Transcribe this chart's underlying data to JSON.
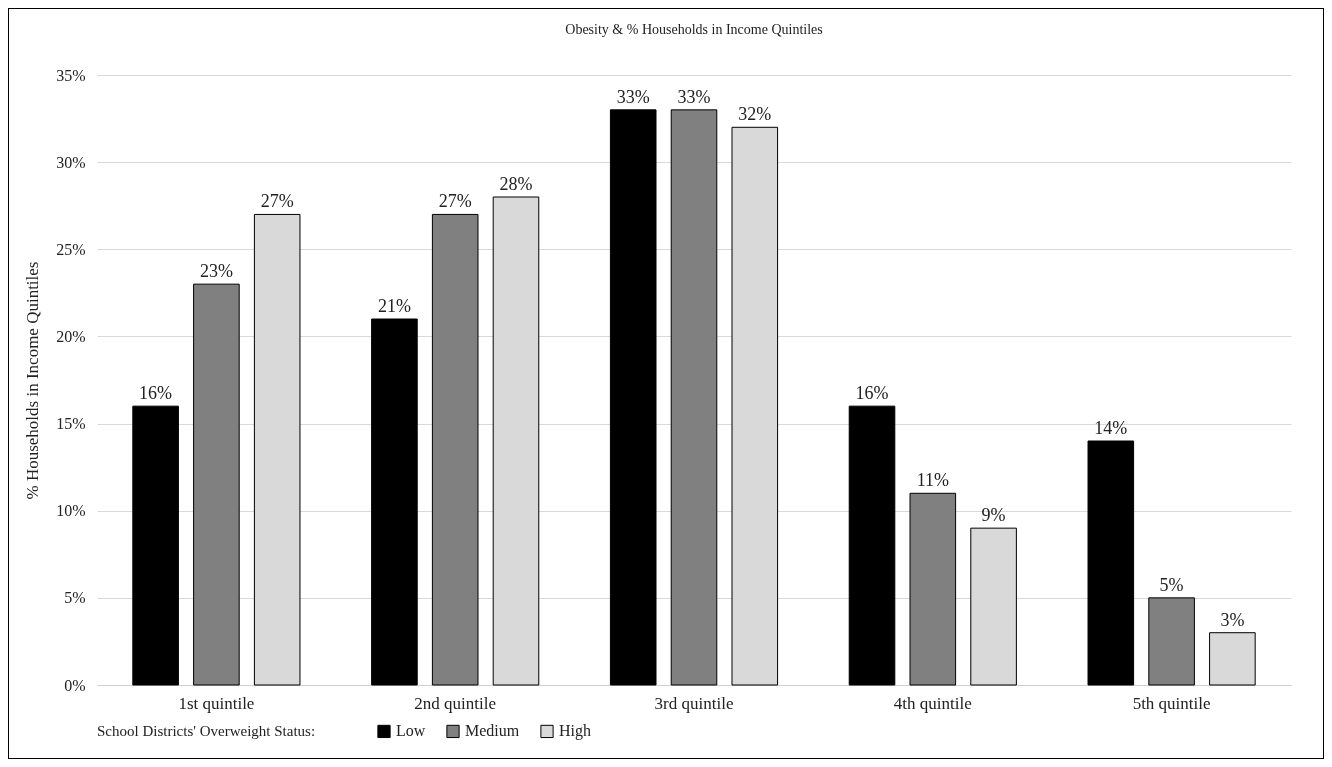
{
  "chart_data": {
    "type": "bar",
    "title": "Obesity & % Households in Income Quintiles",
    "ylabel": "% Households in Income Quintiles",
    "legend_title": "School Districts' Overweight Status:",
    "categories": [
      "1st quintile",
      "2nd quintile",
      "3rd quintile",
      "4th quintile",
      "5th quintile"
    ],
    "series": [
      {
        "name": "Low",
        "color": "#000000",
        "values": [
          16,
          21,
          33,
          16,
          14
        ],
        "value_labels": [
          "16%",
          "21%",
          "33%",
          "16%",
          "14%"
        ]
      },
      {
        "name": "Medium",
        "color": "#808080",
        "values": [
          23,
          27,
          33,
          11,
          5
        ],
        "value_labels": [
          "23%",
          "27%",
          "33%",
          "11%",
          "5%"
        ]
      },
      {
        "name": "High",
        "color": "#d9d9d9",
        "values": [
          27,
          28,
          32,
          9,
          3
        ],
        "value_labels": [
          "27%",
          "28%",
          "32%",
          "9%",
          "3%"
        ]
      }
    ],
    "ylim": [
      0,
      35
    ],
    "yticks": [
      {
        "value": 0,
        "label": "0%"
      },
      {
        "value": 5,
        "label": "5%"
      },
      {
        "value": 10,
        "label": "10%"
      },
      {
        "value": 15,
        "label": "15%"
      },
      {
        "value": 20,
        "label": "20%"
      },
      {
        "value": 25,
        "label": "25%"
      },
      {
        "value": 30,
        "label": "30%"
      },
      {
        "value": 35,
        "label": "35%"
      }
    ],
    "grid": "y",
    "legend": "bottom"
  }
}
